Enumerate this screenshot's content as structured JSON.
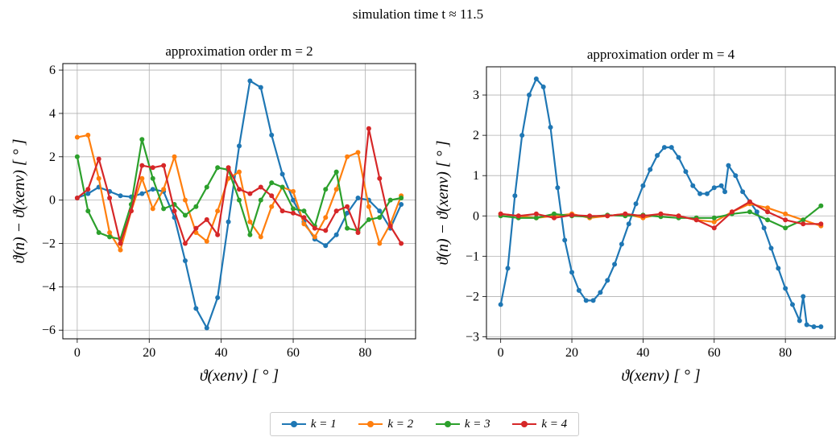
{
  "figure": {
    "suptitle": "simulation time t ≈ 11.5"
  },
  "legend": [
    {
      "label": "k = 1",
      "color": "#1f77b4"
    },
    {
      "label": "k = 2",
      "color": "#ff7f0e"
    },
    {
      "label": "k = 3",
      "color": "#2ca02c"
    },
    {
      "label": "k = 4",
      "color": "#d62728"
    }
  ],
  "chart_data": [
    {
      "type": "line",
      "title": "approximation order m = 2",
      "xlabel": "ϑ(xenv)  [ ° ]",
      "ylabel": "ϑ(n) − ϑ(xenv)  [ ° ]",
      "xlim": [
        -4,
        94
      ],
      "ylim": [
        -6.4,
        6.3
      ],
      "xticks": [
        0,
        20,
        40,
        60,
        80
      ],
      "yticks": [
        -6,
        -4,
        -2,
        0,
        2,
        4,
        6
      ],
      "grid": true,
      "markers": "circle",
      "series": [
        {
          "name": "k = 1",
          "color": "#1f77b4",
          "x": [
            0,
            3,
            6,
            9,
            12,
            15,
            18,
            21,
            24,
            27,
            30,
            33,
            36,
            39,
            42,
            45,
            48,
            51,
            54,
            57,
            60,
            63,
            66,
            69,
            72,
            75,
            78,
            81,
            84,
            87,
            90
          ],
          "y": [
            0.1,
            0.3,
            0.6,
            0.4,
            0.2,
            0.15,
            0.3,
            0.5,
            0.4,
            -0.8,
            -2.8,
            -5.0,
            -5.9,
            -4.5,
            -1.0,
            2.5,
            5.5,
            5.2,
            3.0,
            1.2,
            0.0,
            -1.0,
            -1.8,
            -2.1,
            -1.6,
            -0.6,
            0.1,
            0.0,
            -0.5,
            -1.3,
            -0.2
          ]
        },
        {
          "name": "k = 2",
          "color": "#ff7f0e",
          "x": [
            0,
            3,
            6,
            9,
            12,
            15,
            18,
            21,
            24,
            27,
            30,
            33,
            36,
            39,
            42,
            45,
            48,
            51,
            54,
            57,
            60,
            63,
            66,
            69,
            72,
            75,
            78,
            81,
            84,
            87,
            90
          ],
          "y": [
            2.9,
            3.0,
            1.0,
            -1.5,
            -2.3,
            -0.5,
            1.0,
            -0.4,
            0.5,
            2.0,
            0.0,
            -1.5,
            -1.9,
            -0.5,
            1.0,
            1.3,
            -1.0,
            -1.7,
            -0.3,
            0.6,
            0.4,
            -1.1,
            -1.7,
            -0.8,
            0.5,
            2.0,
            2.2,
            -0.3,
            -2.0,
            -1.1,
            0.2
          ]
        },
        {
          "name": "k = 3",
          "color": "#2ca02c",
          "x": [
            0,
            3,
            6,
            9,
            12,
            15,
            18,
            21,
            24,
            27,
            30,
            33,
            36,
            39,
            42,
            45,
            48,
            51,
            54,
            57,
            60,
            63,
            66,
            69,
            72,
            75,
            78,
            81,
            84,
            87,
            90
          ],
          "y": [
            2.0,
            -0.5,
            -1.5,
            -1.7,
            -1.8,
            -0.2,
            2.8,
            1.0,
            -0.4,
            -0.2,
            -0.7,
            -0.3,
            0.6,
            1.5,
            1.4,
            0.0,
            -1.6,
            0.0,
            0.8,
            0.6,
            -0.4,
            -0.5,
            -1.2,
            0.5,
            1.3,
            -1.3,
            -1.4,
            -0.9,
            -0.8,
            0.0,
            0.1
          ]
        },
        {
          "name": "k = 4",
          "color": "#d62728",
          "x": [
            0,
            3,
            6,
            9,
            12,
            15,
            18,
            21,
            24,
            27,
            30,
            33,
            36,
            39,
            42,
            45,
            48,
            51,
            54,
            57,
            60,
            63,
            66,
            69,
            72,
            75,
            78,
            81,
            84,
            87,
            90
          ],
          "y": [
            0.1,
            0.5,
            1.9,
            0.1,
            -2.0,
            -0.5,
            1.6,
            1.5,
            1.6,
            -0.5,
            -2.0,
            -1.3,
            -0.9,
            -1.6,
            1.5,
            0.5,
            0.3,
            0.6,
            0.2,
            -0.5,
            -0.6,
            -0.8,
            -1.3,
            -1.4,
            -0.5,
            -0.3,
            -1.5,
            3.3,
            1.0,
            -1.2,
            -2.0
          ]
        }
      ]
    },
    {
      "type": "line",
      "title": "approximation order m = 4",
      "xlabel": "ϑ(xenv)  [ ° ]",
      "ylabel": "ϑ(n) − ϑ(xenv)  [ ° ]",
      "xlim": [
        -4,
        94
      ],
      "ylim": [
        -3.05,
        3.7
      ],
      "xticks": [
        0,
        20,
        40,
        60,
        80
      ],
      "yticks": [
        -3,
        -2,
        -1,
        0,
        1,
        2,
        3
      ],
      "grid": true,
      "markers": "circle",
      "series": [
        {
          "name": "k = 1",
          "color": "#1f77b4",
          "x": [
            0,
            2,
            4,
            6,
            8,
            10,
            12,
            14,
            16,
            18,
            20,
            22,
            24,
            26,
            28,
            30,
            32,
            34,
            36,
            38,
            40,
            42,
            44,
            46,
            48,
            50,
            52,
            54,
            56,
            58,
            60,
            62,
            63,
            64,
            66,
            68,
            70,
            72,
            74,
            76,
            78,
            80,
            82,
            84,
            85,
            86,
            88,
            90
          ],
          "y": [
            -2.2,
            -1.3,
            0.5,
            2.0,
            3.0,
            3.4,
            3.2,
            2.2,
            0.7,
            -0.6,
            -1.4,
            -1.85,
            -2.1,
            -2.1,
            -1.9,
            -1.6,
            -1.2,
            -0.7,
            -0.2,
            0.3,
            0.75,
            1.15,
            1.5,
            1.7,
            1.7,
            1.45,
            1.1,
            0.75,
            0.55,
            0.55,
            0.7,
            0.75,
            0.6,
            1.25,
            1.0,
            0.6,
            0.35,
            0.1,
            -0.3,
            -0.8,
            -1.3,
            -1.8,
            -2.2,
            -2.6,
            -2.0,
            -2.7,
            -2.75,
            -2.75
          ]
        },
        {
          "name": "k = 2",
          "color": "#ff7f0e",
          "x": [
            0,
            5,
            10,
            15,
            20,
            25,
            30,
            35,
            40,
            45,
            50,
            55,
            60,
            65,
            70,
            75,
            80,
            85,
            90
          ],
          "y": [
            0.05,
            0.0,
            -0.05,
            0.0,
            0.05,
            -0.05,
            0.0,
            0.05,
            -0.05,
            0.05,
            0.0,
            -0.1,
            -0.15,
            0.1,
            0.3,
            0.2,
            0.05,
            -0.1,
            -0.25
          ]
        },
        {
          "name": "k = 3",
          "color": "#2ca02c",
          "x": [
            0,
            5,
            10,
            15,
            20,
            25,
            30,
            35,
            40,
            45,
            50,
            55,
            60,
            65,
            70,
            75,
            80,
            85,
            90
          ],
          "y": [
            0.0,
            -0.05,
            -0.05,
            0.05,
            0.0,
            -0.02,
            0.02,
            0.0,
            0.02,
            -0.02,
            -0.05,
            -0.05,
            -0.05,
            0.05,
            0.1,
            -0.1,
            -0.3,
            -0.1,
            0.25
          ]
        },
        {
          "name": "k = 4",
          "color": "#d62728",
          "x": [
            0,
            5,
            10,
            15,
            20,
            25,
            30,
            35,
            40,
            45,
            50,
            55,
            60,
            65,
            70,
            75,
            80,
            85,
            90
          ],
          "y": [
            0.05,
            0.0,
            0.05,
            -0.05,
            0.02,
            0.0,
            0.0,
            0.05,
            0.0,
            0.05,
            0.0,
            -0.1,
            -0.3,
            0.1,
            0.35,
            0.1,
            -0.1,
            -0.2,
            -0.2
          ]
        }
      ]
    }
  ]
}
